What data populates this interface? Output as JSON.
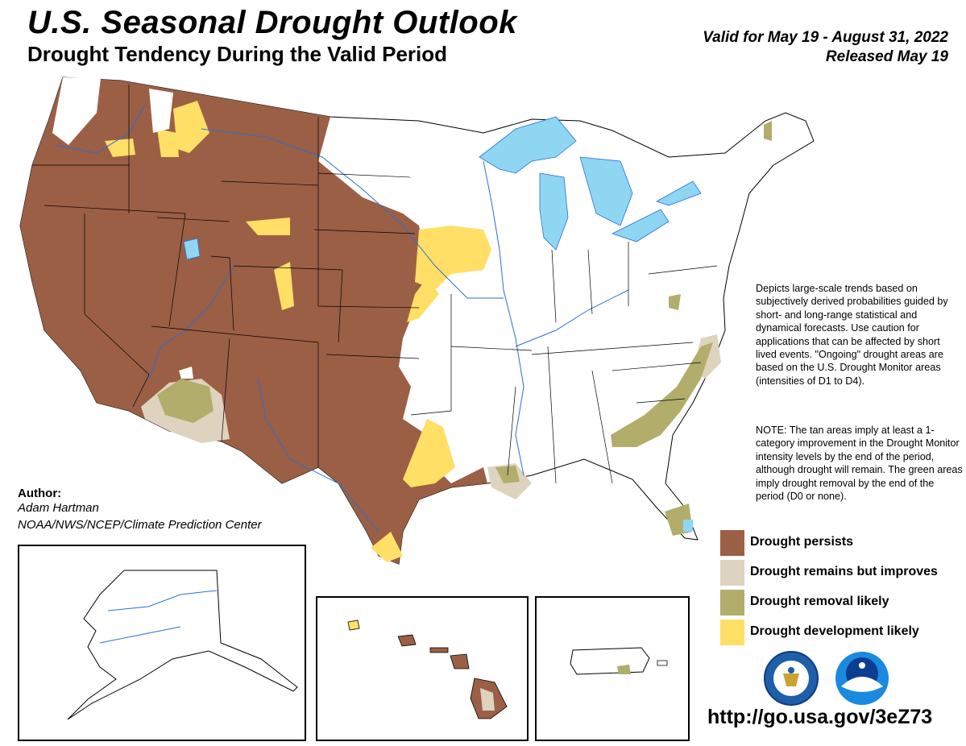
{
  "header": {
    "title": "U.S. Seasonal Drought Outlook",
    "subtitle": "Drought Tendency During the Valid Period",
    "valid": "Valid for May 19 - August 31, 2022",
    "released": "Released May 19"
  },
  "description": "Depicts large-scale trends based on subjectively derived probabilities guided by short- and long-range statistical and dynamical forecasts. Use caution for applications that can be affected by short lived events. \"Ongoing\" drought areas are based on the U.S. Drought Monitor areas (intensities of D1 to D4).",
  "note": "NOTE: The tan areas imply at least a 1-category improvement in the Drought Monitor intensity levels by the end of the period, although drought will remain. The green areas imply drought removal by the end of the period (D0 or none).",
  "author": {
    "heading": "Author:",
    "name": "Adam Hartman",
    "org": "NOAA/NWS/NCEP/Climate Prediction Center"
  },
  "legend": [
    {
      "label": "Drought persists",
      "color": "#9b5f45"
    },
    {
      "label": "Drought remains but improves",
      "color": "#ddd3bf"
    },
    {
      "label": "Drought removal likely",
      "color": "#b2ad6b"
    },
    {
      "label": "Drought development likely",
      "color": "#ffdf66"
    }
  ],
  "colors": {
    "persists": "#9b5f45",
    "improves": "#ddd3bf",
    "removal": "#b2ad6b",
    "development": "#ffdf66",
    "water": "#8ed6f2",
    "river": "#2a6fd6"
  },
  "logos": [
    "doc-seal-icon",
    "noaa-logo-icon"
  ],
  "url": "http://go.usa.gov/3eZ73"
}
